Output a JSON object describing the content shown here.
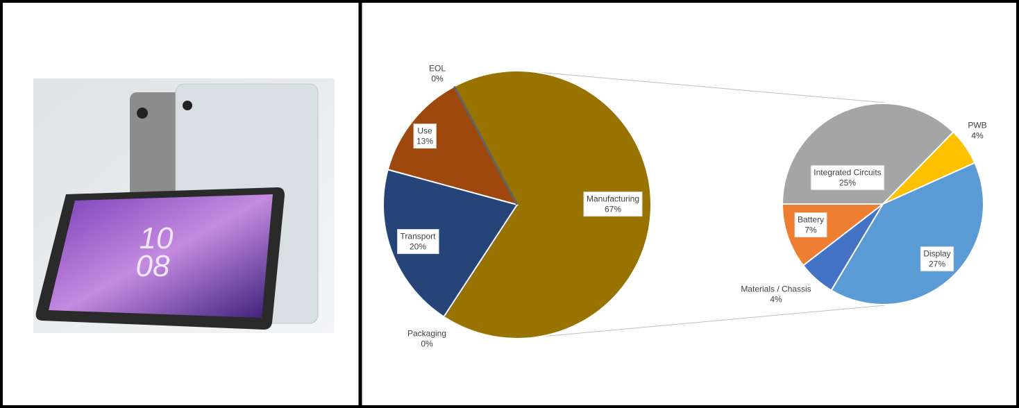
{
  "image": {
    "screen_time": [
      "10",
      "08"
    ]
  },
  "chart_data": [
    {
      "type": "pie",
      "categories": [
        "Manufacturing",
        "Packaging",
        "Transport",
        "Use",
        "EOL"
      ],
      "values": [
        67,
        0,
        20,
        13,
        0
      ],
      "value_labels": [
        "67%",
        "0%",
        "20%",
        "13%",
        "0%"
      ],
      "colors": [
        "#997300",
        "#636363",
        "#264478",
        "#9e480e",
        "#636363"
      ]
    },
    {
      "type": "pie",
      "categories": [
        "Integrated Circuits",
        "PWB",
        "Display",
        "Materials / Chassis",
        "Battery"
      ],
      "values": [
        25,
        4,
        27,
        4,
        7
      ],
      "value_labels": [
        "25%",
        "4%",
        "27%",
        "4%",
        "7%"
      ],
      "colors": [
        "#a5a5a5",
        "#ffc000",
        "#5b9bd5",
        "#4472c4",
        "#ed7d31"
      ]
    }
  ]
}
